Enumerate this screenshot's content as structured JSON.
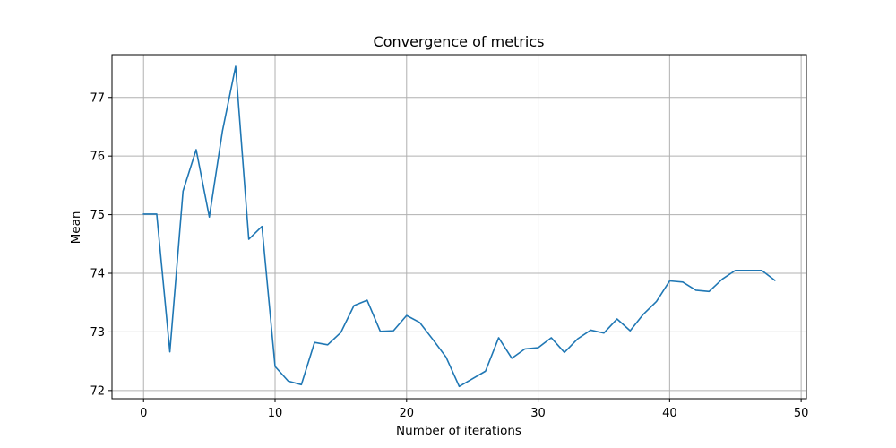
{
  "chart_data": {
    "type": "line",
    "title": "Convergence of metrics",
    "xlabel": "Number of iterations",
    "ylabel": "Mean",
    "xlim": [
      -2.4,
      50.4
    ],
    "ylim": [
      71.86,
      77.73
    ],
    "xticks": [
      0,
      10,
      20,
      30,
      40,
      50
    ],
    "yticks": [
      72,
      73,
      74,
      75,
      76,
      77
    ],
    "grid": true,
    "legend": "none",
    "series": [
      {
        "color": "#1f77b4",
        "x": [
          0,
          1,
          2,
          3,
          4,
          5,
          6,
          7,
          8,
          9,
          10,
          11,
          12,
          13,
          14,
          15,
          16,
          17,
          18,
          19,
          20,
          21,
          22,
          23,
          24,
          25,
          26,
          27,
          28,
          29,
          30,
          31,
          32,
          33,
          34,
          35,
          36,
          37,
          38,
          39,
          40,
          41,
          42,
          43,
          44,
          45,
          46,
          47,
          48
        ],
        "y": [
          75.01,
          75.01,
          72.66,
          75.4,
          76.11,
          74.96,
          76.43,
          77.53,
          74.58,
          74.8,
          72.41,
          72.16,
          72.1,
          72.82,
          72.78,
          72.99,
          73.45,
          73.54,
          73.01,
          73.02,
          73.28,
          73.16,
          72.87,
          72.57,
          72.07,
          72.2,
          72.33,
          72.9,
          72.55,
          72.71,
          72.73,
          72.9,
          72.65,
          72.88,
          73.03,
          72.98,
          73.22,
          73.02,
          73.3,
          73.52,
          73.87,
          73.85,
          73.71,
          73.69,
          73.9,
          74.05,
          74.05,
          74.05,
          73.88
        ]
      }
    ]
  }
}
